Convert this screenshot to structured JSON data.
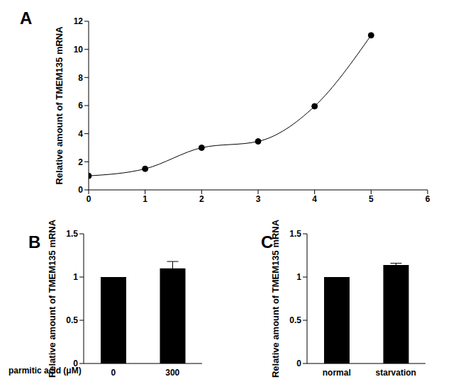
{
  "chart_data": [
    {
      "type": "line",
      "title": "A",
      "y_label": "Relative amount of TMEM135 mRNA",
      "x": [
        0,
        1,
        2,
        3,
        4,
        5
      ],
      "values": [
        1,
        1.5,
        3,
        3.45,
        5.95,
        11
      ],
      "color": "#000000",
      "marker": "circle",
      "xlim": [
        0,
        6
      ],
      "xticks": [
        0,
        1,
        2,
        3,
        4,
        5,
        6
      ],
      "ylim": [
        0,
        12
      ],
      "yticks": [
        0,
        2,
        4,
        6,
        8,
        10,
        12
      ],
      "grid": false
    },
    {
      "type": "bar",
      "title": "B",
      "x_label": "parmitic acid (μM)",
      "y_label": "Relative amount of TMEM135 mRNA",
      "categories": [
        "0",
        "300"
      ],
      "values": [
        1,
        1.1
      ],
      "errors": [
        0,
        0.08
      ],
      "color": "#000000",
      "ylim": [
        0,
        1.5
      ],
      "yticks": [
        0,
        0.5,
        1,
        1.5
      ],
      "grid": false
    },
    {
      "type": "bar",
      "title": "C",
      "y_label": "Relative amount of TMEM135 mRNA",
      "categories": [
        "normal",
        "starvation"
      ],
      "values": [
        1,
        1.14
      ],
      "errors": [
        0,
        0.02
      ],
      "color": "#000000",
      "ylim": [
        0,
        1.5
      ],
      "yticks": [
        0,
        0.5,
        1,
        1.5
      ],
      "grid": false
    }
  ]
}
